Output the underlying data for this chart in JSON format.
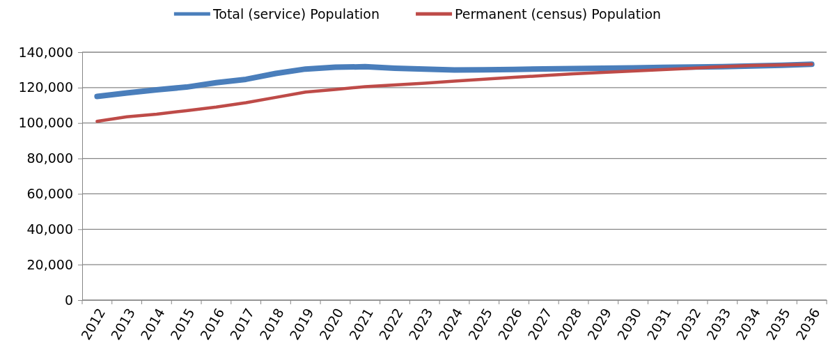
{
  "chart_data": {
    "type": "line",
    "categories": [
      "2012",
      "2013",
      "2014",
      "2015",
      "2016",
      "2017",
      "2018",
      "2019",
      "2020",
      "2021",
      "2022",
      "2023",
      "2024",
      "2025",
      "2026",
      "2027",
      "2028",
      "2029",
      "2030",
      "2031",
      "2032",
      "2033",
      "2034",
      "2035",
      "2036"
    ],
    "series": [
      {
        "name": "Total (service) Population",
        "color": "#4a7ebb",
        "values": [
          115000,
          117000,
          118800,
          120300,
          122800,
          124700,
          128000,
          130500,
          131500,
          131800,
          131000,
          130500,
          130000,
          130100,
          130300,
          130600,
          130800,
          131000,
          131200,
          131400,
          131600,
          131800,
          132200,
          132600,
          133200
        ]
      },
      {
        "name": "Permanent (census) Population",
        "color": "#be4b48",
        "values": [
          101000,
          103500,
          105000,
          107000,
          109000,
          111500,
          114500,
          117500,
          119000,
          120500,
          121500,
          122500,
          123700,
          124800,
          125800,
          126800,
          127800,
          128600,
          129400,
          130200,
          131000,
          131800,
          132500,
          132800,
          133200
        ]
      }
    ],
    "ylim": [
      0,
      140000
    ],
    "yticks": [
      {
        "value": 0,
        "label": "0"
      },
      {
        "value": 20000,
        "label": "20,000"
      },
      {
        "value": 40000,
        "label": "40,000"
      },
      {
        "value": 60000,
        "label": "60,000"
      },
      {
        "value": 80000,
        "label": "80,000"
      },
      {
        "value": 100000,
        "label": "100,000"
      },
      {
        "value": 120000,
        "label": "120,000"
      },
      {
        "value": 140000,
        "label": "140,000"
      }
    ],
    "grid": "y",
    "legend": "top",
    "marker": "none",
    "line_style": "solid"
  }
}
